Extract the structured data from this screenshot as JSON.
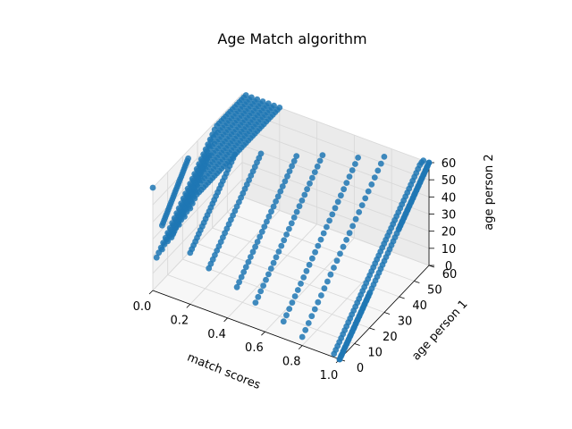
{
  "chart_data": {
    "type": "scatter",
    "projection": "3d",
    "title": "Age Match algorithm",
    "xlabel": "match scores",
    "ylabel": "age person 1",
    "zlabel": "age person 2",
    "xticks": [
      "0.0",
      "0.2",
      "0.4",
      "0.6",
      "0.8",
      "1.0"
    ],
    "yticks": [
      "0",
      "10",
      "20",
      "30",
      "40",
      "50",
      "60"
    ],
    "zticks": [
      "0",
      "10",
      "20",
      "30",
      "40",
      "50",
      "60"
    ],
    "xlim": [
      0,
      1
    ],
    "ylim": [
      0,
      60
    ],
    "zlim": [
      0,
      60
    ],
    "grid": true,
    "color": "#1f77b4",
    "series": [
      {
        "description": "sampled points along the fanning bands of equal age difference",
        "points": [
          {
            "x": 1.0,
            "y": 0,
            "z": 0
          },
          {
            "x": 1.0,
            "y": 20,
            "z": 20
          },
          {
            "x": 1.0,
            "y": 40,
            "z": 40
          },
          {
            "x": 1.0,
            "y": 60,
            "z": 60
          },
          {
            "x": 0.8,
            "y": 0,
            "z": 5
          },
          {
            "x": 0.8,
            "y": 55,
            "z": 60
          },
          {
            "x": 0.7,
            "y": 0,
            "z": 10
          },
          {
            "x": 0.7,
            "y": 50,
            "z": 60
          },
          {
            "x": 0.55,
            "y": 0,
            "z": 15
          },
          {
            "x": 0.55,
            "y": 45,
            "z": 60
          },
          {
            "x": 0.45,
            "y": 0,
            "z": 20
          },
          {
            "x": 0.45,
            "y": 40,
            "z": 60
          },
          {
            "x": 0.3,
            "y": 0,
            "z": 25
          },
          {
            "x": 0.3,
            "y": 35,
            "z": 60
          },
          {
            "x": 0.2,
            "y": 0,
            "z": 30
          },
          {
            "x": 0.2,
            "y": 30,
            "z": 60
          },
          {
            "x": 0.1,
            "y": 0,
            "z": 35
          },
          {
            "x": 0.1,
            "y": 25,
            "z": 60
          },
          {
            "x": 0.05,
            "y": 0,
            "z": 40
          },
          {
            "x": 0.03,
            "y": 20,
            "z": 60
          },
          {
            "x": 0.0,
            "y": 0,
            "z": 60
          }
        ]
      }
    ]
  }
}
